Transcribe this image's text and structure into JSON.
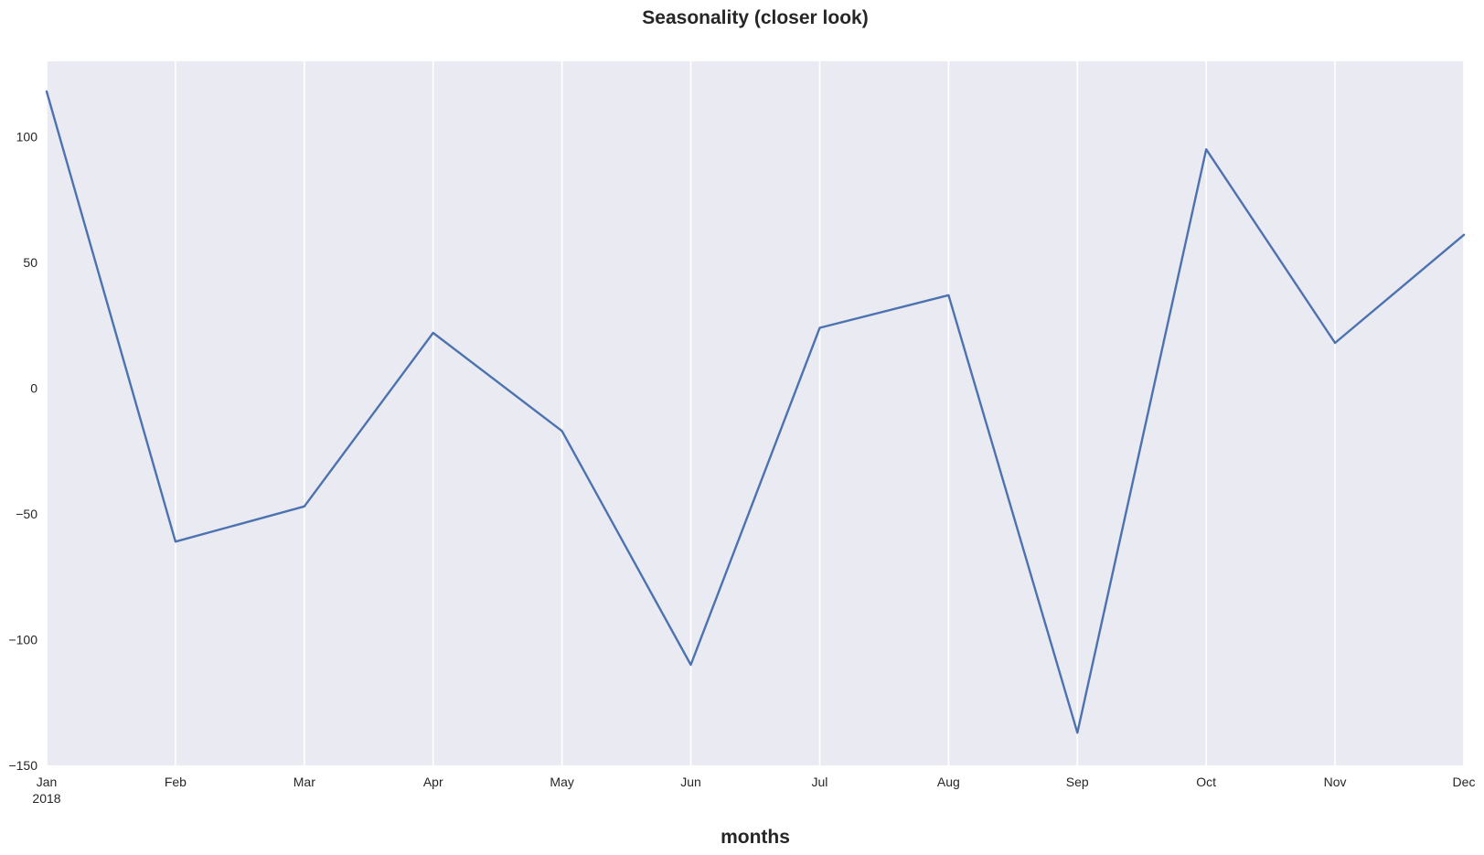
{
  "chart_data": {
    "type": "line",
    "title": "Seasonality (closer look)",
    "xlabel": "months",
    "ylabel": "",
    "x": [
      "Jan",
      "Feb",
      "Mar",
      "Apr",
      "May",
      "Jun",
      "Jul",
      "Aug",
      "Sep",
      "Oct",
      "Nov",
      "Dec"
    ],
    "x_tick_labels": [
      "Jan",
      "Feb",
      "Mar",
      "Apr",
      "May",
      "Jun",
      "Jul",
      "Aug",
      "Sep",
      "Oct",
      "Nov",
      "Dec"
    ],
    "x_tick_sublabel": "2018",
    "series": [
      {
        "values": [
          118,
          -61,
          -47,
          22,
          -17,
          -110,
          24,
          37,
          -137,
          95,
          18,
          61
        ]
      }
    ],
    "ylim": [
      -150,
      130
    ],
    "y_ticks": [
      -150,
      -100,
      -50,
      0,
      50,
      100
    ],
    "grid": "x-only",
    "legend": "none",
    "colors": {
      "line": "#4c72b0",
      "plot_background": "#eaeaf2",
      "grid": "#ffffff",
      "text": "#262626"
    }
  }
}
